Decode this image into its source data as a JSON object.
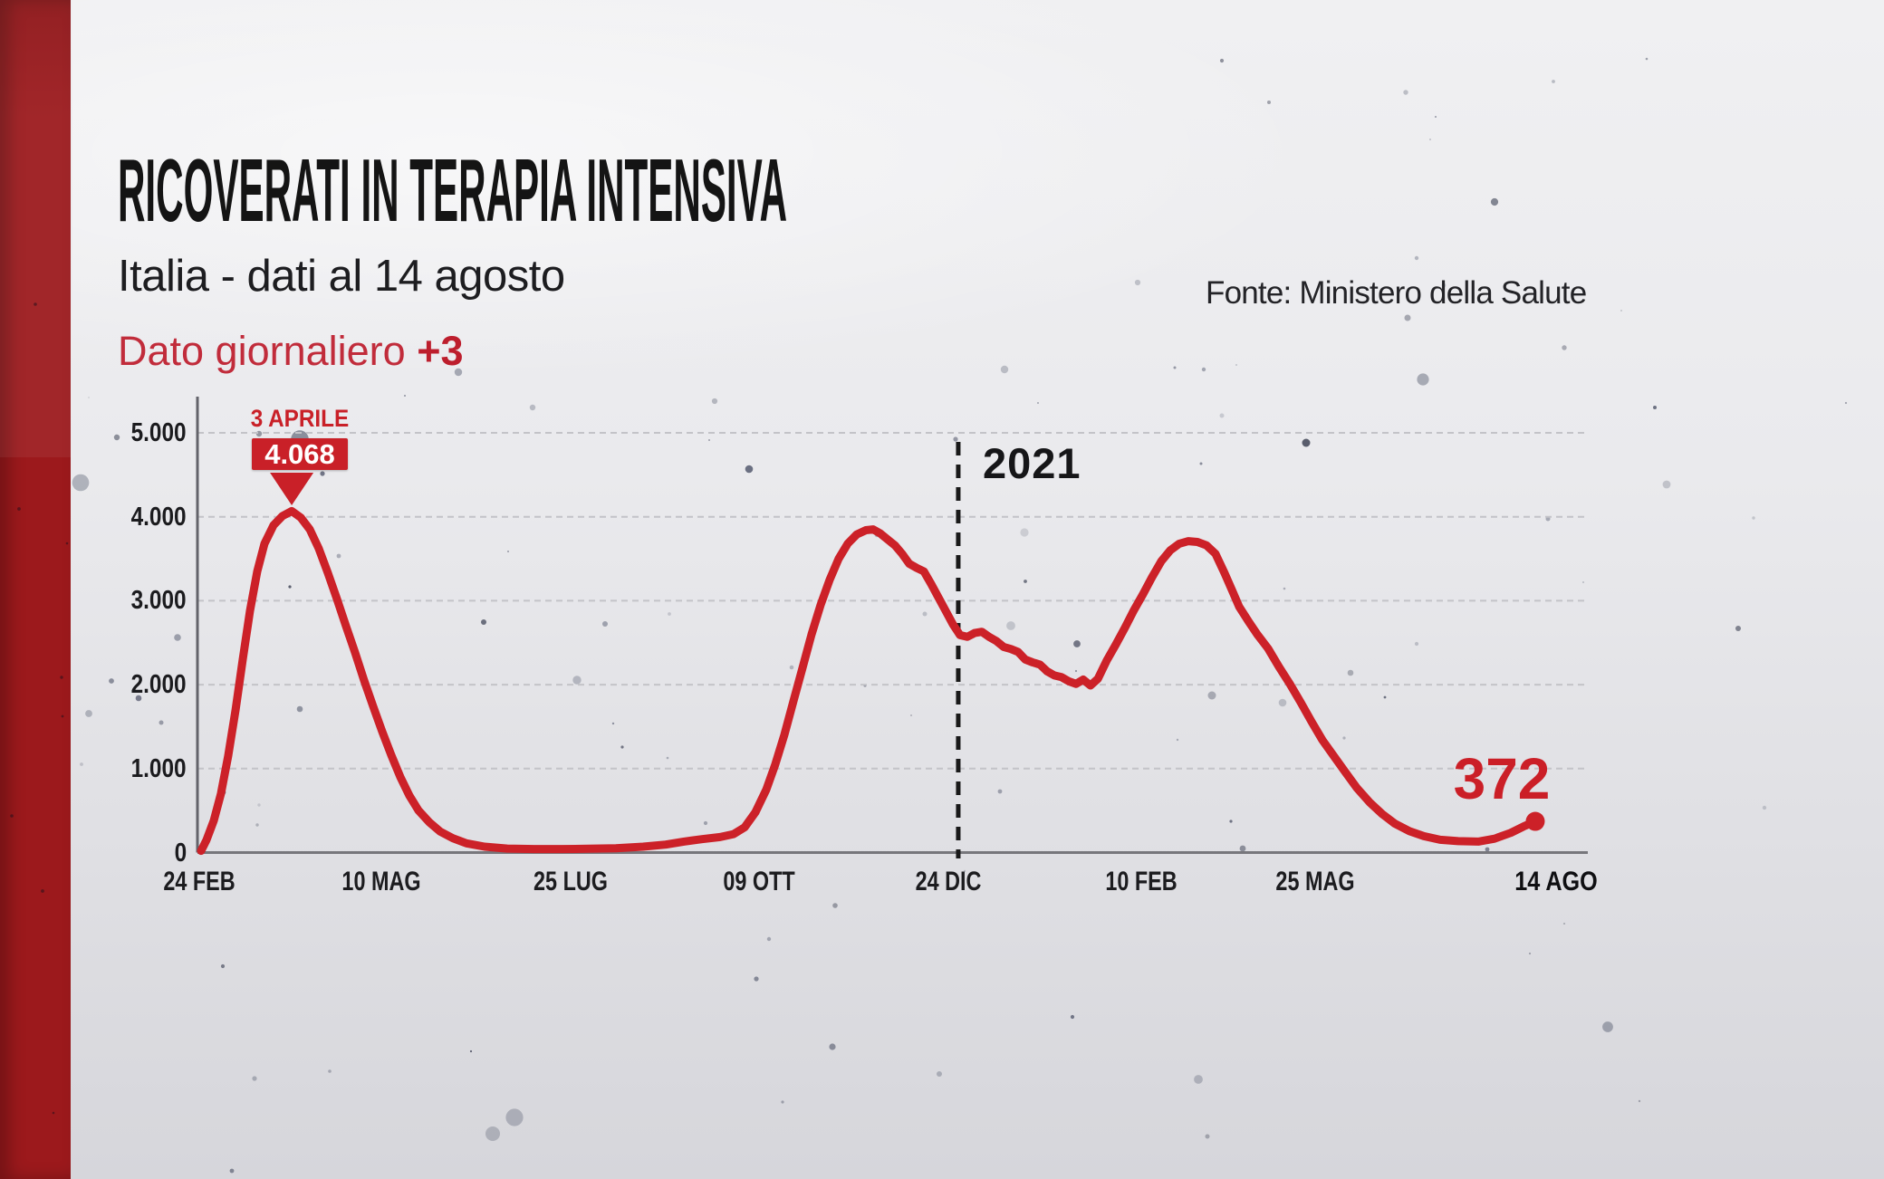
{
  "header": {
    "title": "RICOVERATI IN TERAPIA INTENSIVA",
    "subtitle": "Italia - dati al 14 agosto",
    "daily_label": "Dato giornaliero",
    "daily_value": "+3",
    "source": "Fonte: Ministero della Salute"
  },
  "colors": {
    "line_red": "#cc2128",
    "annotation_red": "#c92028",
    "sidebar_red": "#9c191c",
    "grid_gray": "#c3c3c8",
    "axis_gray": "#77777c",
    "divider_black": "#191919",
    "text_dark": "#1b1b1e"
  },
  "chart_data": {
    "type": "line",
    "title": "Ricoverati in terapia intensiva - Italia",
    "xlabel": "",
    "ylabel": "",
    "ylim": [
      0,
      5000
    ],
    "grid": "dashed-horizontal",
    "y_ticks": [
      {
        "label": "5.000",
        "value": 5000
      },
      {
        "label": "4.000",
        "value": 4000
      },
      {
        "label": "3.000",
        "value": 3000
      },
      {
        "label": "2.000",
        "value": 2000
      },
      {
        "label": "1.000",
        "value": 1000
      },
      {
        "label": "0",
        "value": 0
      }
    ],
    "x_ticks": [
      {
        "label": "24 FEB",
        "t": 0.0013,
        "bold": false
      },
      {
        "label": "10 MAG",
        "t": 0.1322,
        "bold": false
      },
      {
        "label": "25 LUG",
        "t": 0.2684,
        "bold": false
      },
      {
        "label": "09 OTT",
        "t": 0.4039,
        "bold": false
      },
      {
        "label": "24 DIC",
        "t": 0.5401,
        "bold": false
      },
      {
        "label": "10 FEB",
        "t": 0.6788,
        "bold": false
      },
      {
        "label": "25 MAG",
        "t": 0.8039,
        "bold": false
      },
      {
        "label": "14 AGO",
        "t": 0.9772,
        "bold": true
      }
    ],
    "year_divider": {
      "label": "2021",
      "t": 0.5472
    },
    "peak_annotation": {
      "date_label": "3 APRILE",
      "value_label": "4.068",
      "value": 4068,
      "t": 0.0678
    },
    "end_annotation": {
      "label": "372",
      "value": 372,
      "t": 0.9622
    },
    "series": [
      {
        "name": "Ricoverati in terapia intensiva",
        "color": "#cc2128",
        "points": [
          [
            0.0026,
            20
          ],
          [
            0.0065,
            150
          ],
          [
            0.0117,
            380
          ],
          [
            0.0169,
            700
          ],
          [
            0.0221,
            1150
          ],
          [
            0.0274,
            1700
          ],
          [
            0.0326,
            2300
          ],
          [
            0.0378,
            2880
          ],
          [
            0.043,
            3350
          ],
          [
            0.0482,
            3680
          ],
          [
            0.0547,
            3900
          ],
          [
            0.0612,
            4010
          ],
          [
            0.0678,
            4068
          ],
          [
            0.0743,
            3990
          ],
          [
            0.0808,
            3850
          ],
          [
            0.0873,
            3620
          ],
          [
            0.0938,
            3330
          ],
          [
            0.1003,
            3020
          ],
          [
            0.1068,
            2700
          ],
          [
            0.1134,
            2380
          ],
          [
            0.1199,
            2050
          ],
          [
            0.1264,
            1740
          ],
          [
            0.1329,
            1440
          ],
          [
            0.1394,
            1160
          ],
          [
            0.1459,
            900
          ],
          [
            0.1524,
            680
          ],
          [
            0.159,
            500
          ],
          [
            0.1668,
            360
          ],
          [
            0.1746,
            250
          ],
          [
            0.1837,
            170
          ],
          [
            0.1935,
            110
          ],
          [
            0.2065,
            70
          ],
          [
            0.2228,
            48
          ],
          [
            0.2423,
            42
          ],
          [
            0.2619,
            42
          ],
          [
            0.2814,
            45
          ],
          [
            0.301,
            52
          ],
          [
            0.3205,
            70
          ],
          [
            0.3368,
            95
          ],
          [
            0.3498,
            130
          ],
          [
            0.3629,
            160
          ],
          [
            0.3759,
            185
          ],
          [
            0.3857,
            220
          ],
          [
            0.3935,
            300
          ],
          [
            0.4013,
            480
          ],
          [
            0.4091,
            750
          ],
          [
            0.4156,
            1050
          ],
          [
            0.4221,
            1400
          ],
          [
            0.4286,
            1800
          ],
          [
            0.4352,
            2200
          ],
          [
            0.4417,
            2600
          ],
          [
            0.4482,
            2950
          ],
          [
            0.4547,
            3250
          ],
          [
            0.4612,
            3500
          ],
          [
            0.4677,
            3680
          ],
          [
            0.4742,
            3790
          ],
          [
            0.4808,
            3840
          ],
          [
            0.486,
            3850
          ],
          [
            0.4912,
            3800
          ],
          [
            0.4964,
            3730
          ],
          [
            0.5016,
            3660
          ],
          [
            0.5068,
            3560
          ],
          [
            0.512,
            3440
          ],
          [
            0.5173,
            3390
          ],
          [
            0.5225,
            3350
          ],
          [
            0.5277,
            3200
          ],
          [
            0.5329,
            3040
          ],
          [
            0.5381,
            2880
          ],
          [
            0.5433,
            2720
          ],
          [
            0.5485,
            2590
          ],
          [
            0.5537,
            2570
          ],
          [
            0.5589,
            2615
          ],
          [
            0.5642,
            2630
          ],
          [
            0.5694,
            2570
          ],
          [
            0.5746,
            2520
          ],
          [
            0.5798,
            2450
          ],
          [
            0.585,
            2425
          ],
          [
            0.5902,
            2390
          ],
          [
            0.5954,
            2300
          ],
          [
            0.6007,
            2265
          ],
          [
            0.6059,
            2240
          ],
          [
            0.6111,
            2160
          ],
          [
            0.6163,
            2110
          ],
          [
            0.6215,
            2090
          ],
          [
            0.6267,
            2040
          ],
          [
            0.6319,
            2010
          ],
          [
            0.6371,
            2060
          ],
          [
            0.6423,
            1990
          ],
          [
            0.6476,
            2070
          ],
          [
            0.6541,
            2290
          ],
          [
            0.6606,
            2480
          ],
          [
            0.6671,
            2680
          ],
          [
            0.6736,
            2890
          ],
          [
            0.6801,
            3080
          ],
          [
            0.6866,
            3280
          ],
          [
            0.6932,
            3470
          ],
          [
            0.6997,
            3600
          ],
          [
            0.7062,
            3680
          ],
          [
            0.7127,
            3710
          ],
          [
            0.7192,
            3700
          ],
          [
            0.7257,
            3660
          ],
          [
            0.7322,
            3560
          ],
          [
            0.7387,
            3330
          ],
          [
            0.744,
            3130
          ],
          [
            0.7492,
            2930
          ],
          [
            0.7557,
            2760
          ],
          [
            0.7622,
            2600
          ],
          [
            0.77,
            2430
          ],
          [
            0.7779,
            2210
          ],
          [
            0.7857,
            2010
          ],
          [
            0.7935,
            1790
          ],
          [
            0.8013,
            1560
          ],
          [
            0.8091,
            1340
          ],
          [
            0.8169,
            1160
          ],
          [
            0.8247,
            980
          ],
          [
            0.8339,
            770
          ],
          [
            0.843,
            600
          ],
          [
            0.8521,
            460
          ],
          [
            0.8612,
            345
          ],
          [
            0.8717,
            255
          ],
          [
            0.8821,
            195
          ],
          [
            0.8938,
            152
          ],
          [
            0.9068,
            136
          ],
          [
            0.9212,
            130
          ],
          [
            0.9329,
            165
          ],
          [
            0.9446,
            235
          ],
          [
            0.9537,
            310
          ],
          [
            0.9622,
            372
          ]
        ]
      }
    ]
  }
}
